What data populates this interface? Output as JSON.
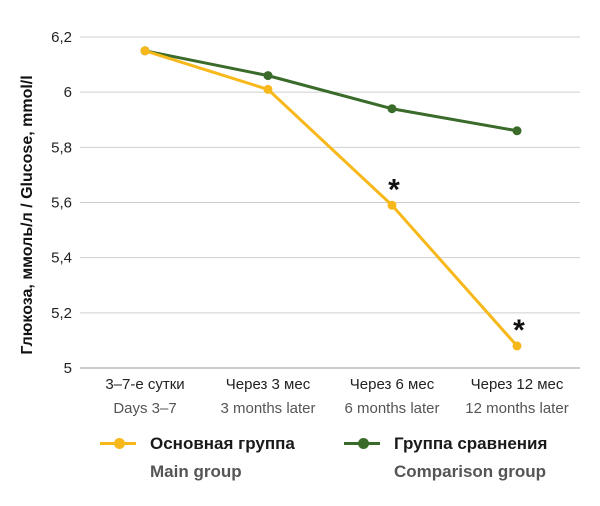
{
  "chart_data": {
    "type": "line",
    "ylabel": "Глюкоза, ммоль/л / Glucose, mmol/l",
    "ylim": [
      5,
      6.2
    ],
    "yticks": [
      "6,2",
      "6",
      "5,8",
      "5,6",
      "5,4",
      "5,2",
      "5"
    ],
    "grid": true,
    "categories_ru": [
      "3–7-е сутки",
      "Через 3 мес",
      "Через 6 мес",
      "Через 12 мес"
    ],
    "categories_en": [
      "Days 3–7",
      "3 months later",
      "6 months later",
      "12 months later"
    ],
    "series": [
      {
        "name": "Основная группа",
        "name_en": "Main group",
        "color": "#f7b81b",
        "values": [
          6.15,
          6.01,
          5.59,
          5.08
        ],
        "markers": [
          "",
          "",
          "*",
          "*"
        ]
      },
      {
        "name": "Группа сравнения",
        "name_en": "Comparison group",
        "color": "#3a6b2a",
        "values": [
          6.15,
          6.06,
          5.94,
          5.86
        ],
        "markers": [
          "",
          "",
          "",
          ""
        ]
      }
    ],
    "legend_position": "bottom"
  }
}
